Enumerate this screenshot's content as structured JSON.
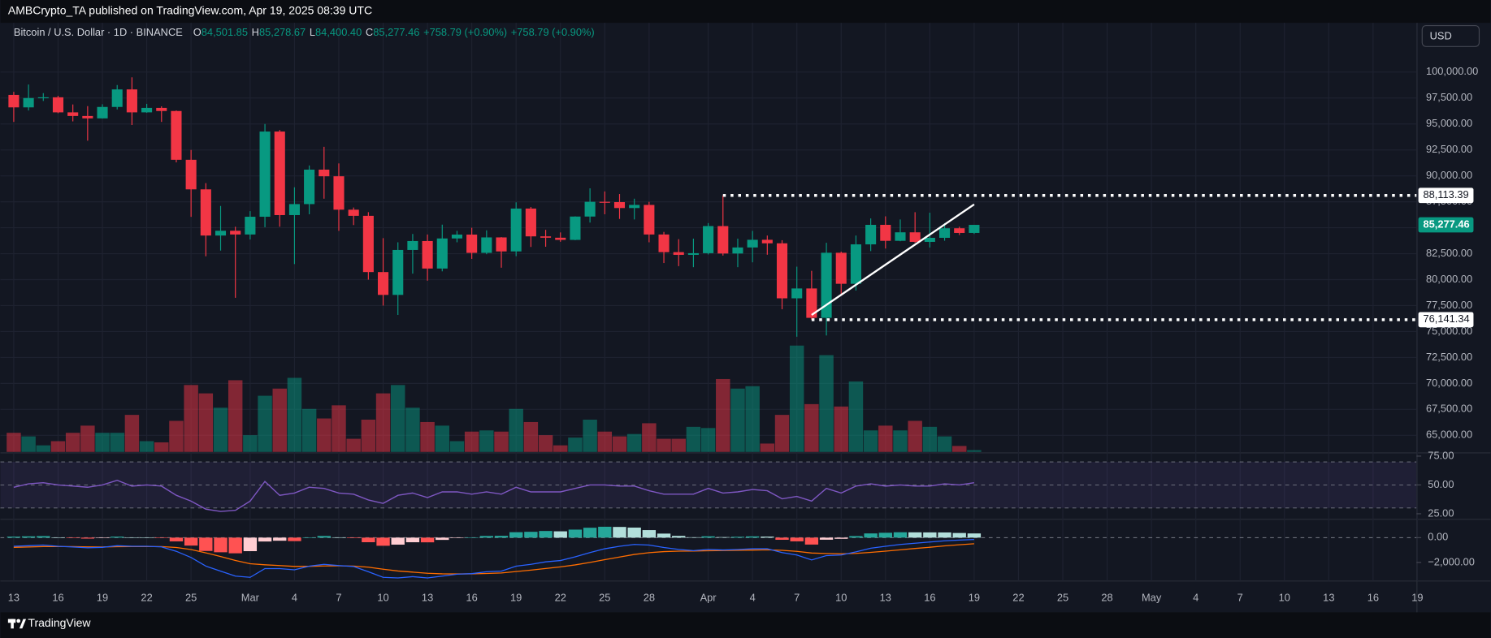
{
  "header": {
    "text": "AMBCrypto_TA published on TradingView.com, Apr 19, 2025 08:39 UTC"
  },
  "footer": {
    "logo": "TradingView"
  },
  "currency_button": "USD",
  "chart_data": {
    "type": "candlestick",
    "title": "Bitcoin / U.S. Dollar · 1D · BINANCE",
    "legend_values": [
      {
        "key": "O",
        "value": "84,501.85"
      },
      {
        "key": "H",
        "value": "85,278.67"
      },
      {
        "key": "L",
        "value": "84,400.40"
      },
      {
        "key": "C",
        "value": "85,277.46"
      }
    ],
    "change": "+758.79 (+0.90%)",
    "x": [
      "2025-02-13",
      "2025-02-14",
      "2025-02-15",
      "2025-02-16",
      "2025-02-17",
      "2025-02-18",
      "2025-02-19",
      "2025-02-20",
      "2025-02-21",
      "2025-02-22",
      "2025-02-23",
      "2025-02-24",
      "2025-02-25",
      "2025-02-26",
      "2025-02-27",
      "2025-02-28",
      "2025-03-01",
      "2025-03-02",
      "2025-03-03",
      "2025-03-04",
      "2025-03-05",
      "2025-03-06",
      "2025-03-07",
      "2025-03-08",
      "2025-03-09",
      "2025-03-10",
      "2025-03-11",
      "2025-03-12",
      "2025-03-13",
      "2025-03-14",
      "2025-03-15",
      "2025-03-16",
      "2025-03-17",
      "2025-03-18",
      "2025-03-19",
      "2025-03-20",
      "2025-03-21",
      "2025-03-22",
      "2025-03-23",
      "2025-03-24",
      "2025-03-25",
      "2025-03-26",
      "2025-03-27",
      "2025-03-28",
      "2025-03-29",
      "2025-03-30",
      "2025-03-31",
      "2025-04-01",
      "2025-04-02",
      "2025-04-03",
      "2025-04-04",
      "2025-04-05",
      "2025-04-06",
      "2025-04-07",
      "2025-04-08",
      "2025-04-09",
      "2025-04-10",
      "2025-04-11",
      "2025-04-12",
      "2025-04-13",
      "2025-04-14",
      "2025-04-15",
      "2025-04-16",
      "2025-04-17",
      "2025-04-18",
      "2025-04-19"
    ],
    "open": [
      97800,
      96600,
      97500,
      97570,
      96120,
      95770,
      95540,
      96640,
      98330,
      96120,
      96550,
      96250,
      91550,
      88700,
      84250,
      84710,
      84350,
      86060,
      94270,
      86220,
      87280,
      90600,
      89960,
      86740,
      86150,
      80730,
      78530,
      82860,
      83720,
      81070,
      83970,
      84340,
      82580,
      84070,
      82720,
      86850,
      84170,
      84040,
      83830,
      86080,
      87500,
      87470,
      86900,
      87200,
      84350,
      82650,
      82390,
      82550,
      85160,
      82520,
      83100,
      83840,
      83500,
      78200,
      79150,
      76320,
      82590,
      79600,
      83400,
      85280,
      83740,
      84560,
      83640,
      84030,
      84950,
      84501.85
    ],
    "high": [
      98100,
      98800,
      97970,
      97720,
      96880,
      96720,
      96900,
      98750,
      99500,
      96940,
      96700,
      96300,
      92500,
      89300,
      87100,
      85100,
      86600,
      95000,
      94420,
      88900,
      91000,
      92800,
      91200,
      86950,
      86500,
      84000,
      83600,
      84400,
      84350,
      85300,
      84700,
      85000,
      84750,
      84100,
      87450,
      87000,
      84800,
      84550,
      86100,
      88800,
      88500,
      88250,
      87800,
      87500,
      84600,
      83900,
      83950,
      85450,
      88113.39,
      83950,
      84700,
      84250,
      83800,
      81250,
      80850,
      83550,
      82700,
      84250,
      85900,
      86100,
      85800,
      86500,
      86450,
      85450,
      85100,
      85278.67
    ],
    "low": [
      95200,
      96300,
      97220,
      96040,
      95250,
      93390,
      95520,
      96400,
      94900,
      96080,
      95200,
      91300,
      86050,
      82250,
      82800,
      78250,
      83870,
      85050,
      85100,
      81500,
      86300,
      87800,
      84700,
      85260,
      80000,
      77500,
      76600,
      80580,
      79900,
      80800,
      83600,
      82000,
      82450,
      81150,
      82260,
      83150,
      83170,
      83650,
      83800,
      85500,
      86300,
      85850,
      85800,
      83600,
      81600,
      81300,
      81200,
      82430,
      82320,
      81200,
      81670,
      82400,
      77150,
      74500,
      76141.34,
      74620,
      78450,
      78950,
      82750,
      83000,
      83700,
      83550,
      83100,
      83750,
      84300,
      84400.4
    ],
    "close": [
      96600,
      97500,
      97570,
      96120,
      95770,
      95540,
      96640,
      98330,
      96120,
      96550,
      96250,
      91550,
      88700,
      84250,
      84710,
      84350,
      86060,
      94270,
      86220,
      87280,
      90600,
      89960,
      86740,
      86150,
      80730,
      78530,
      82860,
      83720,
      81070,
      83970,
      84340,
      82580,
      84070,
      82720,
      86850,
      84170,
      84040,
      83830,
      86080,
      87500,
      87470,
      86900,
      87200,
      84350,
      82650,
      82390,
      82550,
      85160,
      82520,
      83100,
      83840,
      83500,
      78200,
      79150,
      76320,
      82590,
      79600,
      83400,
      85280,
      83740,
      84560,
      83640,
      84030,
      84950,
      84500,
      85277.46
    ],
    "up_color": "#089981",
    "down_color": "#f23645",
    "xlim": [
      "2025-02-12",
      "2025-05-19"
    ],
    "xticks": [
      {
        "value": "2025-02-13",
        "label": "13"
      },
      {
        "value": "2025-02-16",
        "label": "16"
      },
      {
        "value": "2025-02-19",
        "label": "19"
      },
      {
        "value": "2025-02-22",
        "label": "22"
      },
      {
        "value": "2025-02-25",
        "label": "25"
      },
      {
        "value": "2025-03-01",
        "label": "Mar"
      },
      {
        "value": "2025-03-04",
        "label": "4"
      },
      {
        "value": "2025-03-07",
        "label": "7"
      },
      {
        "value": "2025-03-10",
        "label": "10"
      },
      {
        "value": "2025-03-13",
        "label": "13"
      },
      {
        "value": "2025-03-16",
        "label": "16"
      },
      {
        "value": "2025-03-19",
        "label": "19"
      },
      {
        "value": "2025-03-22",
        "label": "22"
      },
      {
        "value": "2025-03-25",
        "label": "25"
      },
      {
        "value": "2025-03-28",
        "label": "28"
      },
      {
        "value": "2025-04-01",
        "label": "Apr"
      },
      {
        "value": "2025-04-04",
        "label": "4"
      },
      {
        "value": "2025-04-07",
        "label": "7"
      },
      {
        "value": "2025-04-10",
        "label": "10"
      },
      {
        "value": "2025-04-13",
        "label": "13"
      },
      {
        "value": "2025-04-16",
        "label": "16"
      },
      {
        "value": "2025-04-19",
        "label": "19"
      },
      {
        "value": "2025-04-22",
        "label": "22"
      },
      {
        "value": "2025-04-25",
        "label": "25"
      },
      {
        "value": "2025-04-28",
        "label": "28"
      },
      {
        "value": "2025-05-01",
        "label": "May"
      },
      {
        "value": "2025-05-04",
        "label": "4"
      },
      {
        "value": "2025-05-07",
        "label": "7"
      },
      {
        "value": "2025-05-10",
        "label": "10"
      },
      {
        "value": "2025-05-13",
        "label": "13"
      },
      {
        "value": "2025-05-16",
        "label": "16"
      },
      {
        "value": "2025-05-19",
        "label": "19"
      }
    ],
    "ylim": [
      63400,
      104750
    ],
    "yticks": [
      {
        "value": 65000,
        "label": "65,000.00"
      },
      {
        "value": 67500,
        "label": "67,500.00"
      },
      {
        "value": 70000,
        "label": "70,000.00"
      },
      {
        "value": 72500,
        "label": "72,500.00"
      },
      {
        "value": 75000,
        "label": "75,000.00"
      },
      {
        "value": 77500,
        "label": "77,500.00"
      },
      {
        "value": 80000,
        "label": "80,000.00"
      },
      {
        "value": 82500,
        "label": "82,500.00"
      },
      {
        "value": 85000,
        "label": "85,000.00"
      },
      {
        "value": 87500,
        "label": "87,500.00"
      },
      {
        "value": 90000,
        "label": "90,000.00"
      },
      {
        "value": 92500,
        "label": "92,500.00"
      },
      {
        "value": 95000,
        "label": "95,000.00"
      },
      {
        "value": 97500,
        "label": "97,500.00"
      },
      {
        "value": 100000,
        "label": "100,000.00"
      }
    ],
    "grid": true,
    "volume": {
      "values": [
        16000,
        13000,
        5500,
        9000,
        16000,
        22000,
        16000,
        16000,
        31000,
        9000,
        8000,
        26000,
        56000,
        49000,
        37000,
        60000,
        14000,
        47000,
        53000,
        62000,
        36000,
        28000,
        39000,
        11000,
        27000,
        49000,
        56000,
        37000,
        25000,
        22000,
        9000,
        17000,
        18000,
        17000,
        36000,
        25000,
        14000,
        5500,
        12000,
        27000,
        17000,
        13000,
        15000,
        24000,
        11000,
        11000,
        21000,
        20000,
        61000,
        53000,
        55000,
        7000,
        31000,
        89000,
        40000,
        81000,
        38000,
        59000,
        18000,
        22000,
        18000,
        26000,
        21000,
        13000,
        5000,
        1500
      ],
      "opacity": 0.5
    },
    "price_lines": [
      {
        "value": 88113.39,
        "label": "88,113.39",
        "start": "2025-04-02"
      },
      {
        "value": 76141.34,
        "label": "76,141.34",
        "start": "2025-04-08"
      }
    ],
    "last_price": {
      "value": 85277.46,
      "label": "85,277.46"
    },
    "trendline": {
      "x": [
        "2025-04-08",
        "2025-04-19"
      ],
      "y": [
        76600,
        87250
      ],
      "color": "#ffffff"
    },
    "rsi": {
      "values": [
        48,
        51,
        52,
        50,
        49,
        48,
        50,
        54,
        49,
        50,
        49,
        41,
        36,
        29,
        27,
        28,
        36,
        53,
        41,
        43,
        48,
        47,
        43,
        42,
        37,
        34,
        41,
        43,
        39,
        44,
        44,
        42,
        44,
        42,
        48,
        44,
        44,
        44,
        47,
        50,
        50,
        49,
        49,
        45,
        42,
        42,
        42,
        47,
        43,
        44,
        46,
        45,
        38,
        40,
        36,
        47,
        43,
        49,
        51,
        49,
        50,
        49,
        49,
        51,
        50,
        52
      ],
      "color": "#7e57c2",
      "ylim": [
        21,
        77
      ],
      "yticks": [
        {
          "value": 75,
          "label": "75.00"
        },
        {
          "value": 50,
          "label": "50.00"
        },
        {
          "value": 25,
          "label": "25.00"
        }
      ],
      "levels": [
        70,
        50,
        30
      ],
      "band": [
        30,
        70
      ]
    },
    "macd": {
      "macd": {
        "color": "#2962ff",
        "values": [
          -700,
          -650,
          -600,
          -700,
          -750,
          -820,
          -780,
          -650,
          -700,
          -700,
          -740,
          -1100,
          -1600,
          -2300,
          -2700,
          -3100,
          -3200,
          -2500,
          -2500,
          -2600,
          -2300,
          -2150,
          -2250,
          -2330,
          -2750,
          -3200,
          -3250,
          -3150,
          -3250,
          -3100,
          -2950,
          -2900,
          -2750,
          -2700,
          -2300,
          -2150,
          -1950,
          -1850,
          -1550,
          -1200,
          -900,
          -700,
          -550,
          -600,
          -800,
          -950,
          -1050,
          -950,
          -1000,
          -960,
          -900,
          -900,
          -1200,
          -1400,
          -1800,
          -1450,
          -1400,
          -1150,
          -850,
          -700,
          -550,
          -450,
          -350,
          -250,
          -200,
          -150
        ]
      },
      "signal": {
        "color": "#ff6d00",
        "values": [
          -780,
          -754,
          -723,
          -718,
          -724,
          -743,
          -750,
          -730,
          -724,
          -719,
          -723,
          -798,
          -958,
          -1226,
          -1521,
          -1837,
          -2110,
          -2188,
          -2250,
          -2320,
          -2316,
          -2283,
          -2276,
          -2287,
          -2380,
          -2544,
          -2685,
          -2778,
          -2872,
          -2918,
          -2924,
          -2919,
          -2885,
          -2848,
          -2738,
          -2620,
          -2486,
          -2359,
          -2197,
          -1998,
          -1778,
          -1562,
          -1360,
          -1208,
          -1126,
          -1091,
          -1083,
          -1056,
          -1045,
          -1028,
          -1002,
          -982,
          -1026,
          -1101,
          -1241,
          -1283,
          -1306,
          -1275,
          -1190,
          -1092,
          -984,
          -877,
          -772,
          -668,
          -574,
          -489
        ]
      },
      "histogram": {
        "values": [
          80,
          104,
          123,
          18,
          -26,
          -77,
          -30,
          80,
          24,
          19,
          -17,
          -302,
          -642,
          -1074,
          -1179,
          -1263,
          -1090,
          -312,
          -250,
          -280,
          16,
          133,
          26,
          -43,
          -370,
          -656,
          -565,
          -372,
          -378,
          -182,
          -26,
          19,
          135,
          148,
          438,
          470,
          536,
          509,
          647,
          798,
          878,
          862,
          810,
          608,
          326,
          141,
          33,
          106,
          45,
          68,
          102,
          82,
          -174,
          -299,
          -559,
          -167,
          -94,
          125,
          340,
          392,
          434,
          427,
          422,
          418,
          374,
          339
        ],
        "colors": {
          "up_rising": "#26a69a",
          "up_falling": "#b2dfdb",
          "down_falling": "#ff5252",
          "down_rising": "#ffcdd2"
        }
      },
      "ylim": [
        -3500,
        1400
      ],
      "yticks": [
        {
          "value": 0,
          "label": "0.00"
        },
        {
          "value": -2000,
          "label": "−2,000.00"
        }
      ]
    }
  }
}
